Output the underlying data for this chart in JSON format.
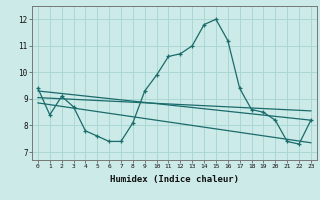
{
  "title": "",
  "xlabel": "Humidex (Indice chaleur)",
  "ylabel": "",
  "bg_color": "#cceae7",
  "line_color": "#1a6b6b",
  "grid_color": "#aad8d5",
  "x_ticks": [
    0,
    1,
    2,
    3,
    4,
    5,
    6,
    7,
    8,
    9,
    10,
    11,
    12,
    13,
    14,
    15,
    16,
    17,
    18,
    19,
    20,
    21,
    22,
    23
  ],
  "y_ticks": [
    7,
    8,
    9,
    10,
    11,
    12
  ],
  "ylim": [
    6.7,
    12.5
  ],
  "xlim": [
    -0.5,
    23.5
  ],
  "series": [
    {
      "x": [
        0,
        1,
        2,
        3,
        4,
        5,
        6,
        7,
        8,
        9,
        10,
        11,
        12,
        13,
        14,
        15,
        16,
        17,
        18,
        19,
        20,
        21,
        22,
        23
      ],
      "y": [
        9.4,
        8.4,
        9.1,
        8.7,
        7.8,
        7.6,
        7.4,
        7.4,
        8.1,
        9.3,
        9.9,
        10.6,
        10.7,
        11.0,
        11.8,
        12.0,
        11.2,
        9.4,
        8.6,
        8.5,
        8.2,
        7.4,
        7.3,
        8.2
      ],
      "marker": true
    },
    {
      "x": [
        0,
        23
      ],
      "y": [
        9.3,
        8.2
      ],
      "marker": false
    },
    {
      "x": [
        0,
        23
      ],
      "y": [
        9.05,
        8.55
      ],
      "marker": false
    },
    {
      "x": [
        0,
        23
      ],
      "y": [
        8.85,
        7.35
      ],
      "marker": false
    }
  ]
}
